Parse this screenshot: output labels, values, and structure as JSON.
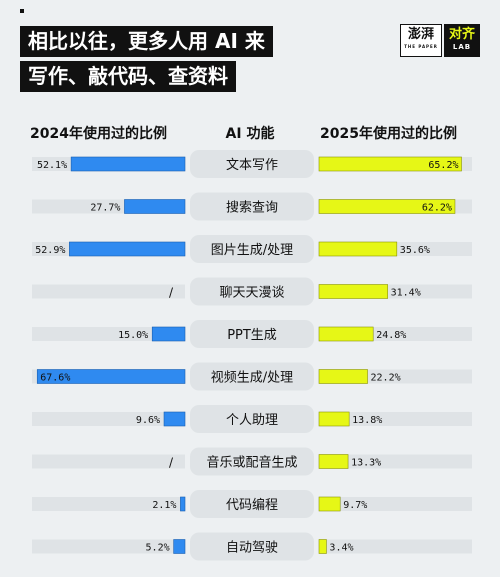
{
  "title_line1": "相比以往，更多人用 AI 来",
  "title_line2": "写作、敲代码、查资料",
  "logo": {
    "main": "澎湃",
    "main_small": "THE PAPER",
    "lab": "对齐",
    "lab_small": "LAB"
  },
  "colors": {
    "left_bar": "#2f8af0",
    "right_bar": "#e6f716",
    "track": "#dfe3e6",
    "pill": "#dfe3e6",
    "background": "#edf0f2"
  },
  "chart_data": {
    "type": "bar",
    "title": "",
    "left_header": "2024年使用过的比例",
    "middle_header": "AI 功能",
    "right_header": "2025年使用过的比例",
    "categories": [
      "文本写作",
      "搜索查询",
      "图片生成/处理",
      "聊天天漫谈",
      "PPT生成",
      "视频生成/处理",
      "个人助理",
      "音乐或配音生成",
      "代码编程",
      "自动驾驶"
    ],
    "series": [
      {
        "name": "2024年使用过的比例",
        "values": [
          52.1,
          27.7,
          52.9,
          null,
          15.0,
          67.6,
          9.6,
          null,
          2.1,
          5.2
        ],
        "labels": [
          "52.1%",
          "27.7%",
          "52.9%",
          "/",
          "15.0%",
          "67.6%",
          "9.6%",
          "/",
          "2.1%",
          "5.2%"
        ]
      },
      {
        "name": "2025年使用过的比例",
        "values": [
          65.2,
          62.2,
          35.6,
          31.4,
          24.8,
          22.2,
          13.8,
          13.3,
          9.7,
          3.4
        ],
        "labels": [
          "65.2%",
          "62.2%",
          "35.6%",
          "31.4%",
          "24.8%",
          "22.2%",
          "13.8%",
          "13.3%",
          "9.7%",
          "3.4%"
        ]
      }
    ],
    "xlim": [
      0,
      70
    ]
  }
}
